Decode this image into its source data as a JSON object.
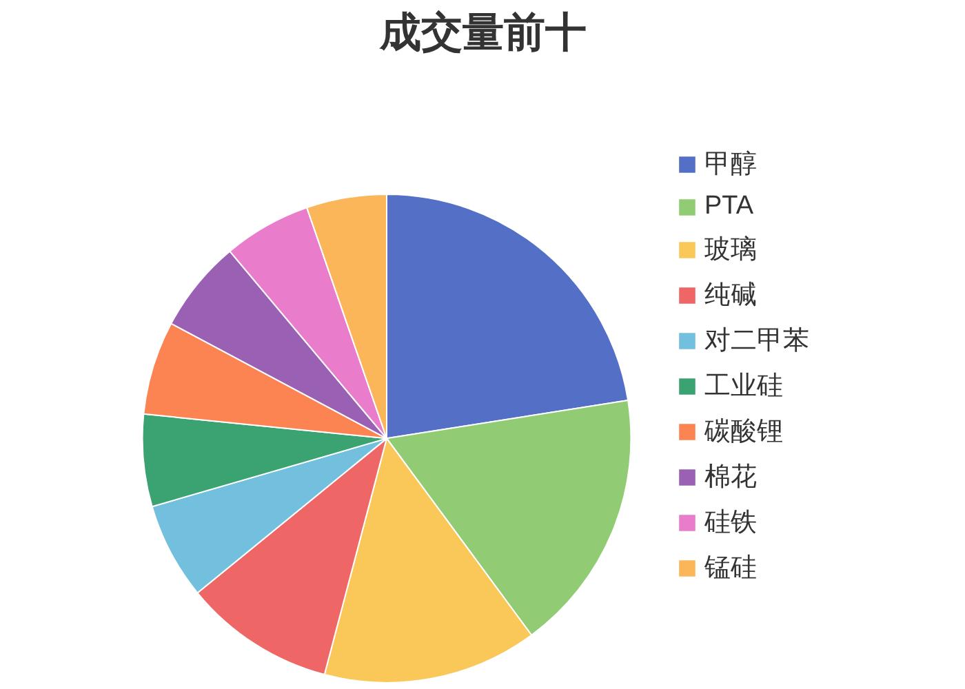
{
  "chart_data": {
    "type": "pie",
    "title": "成交量前十",
    "categories": [
      "甲醇",
      "PTA",
      "玻璃",
      "纯碱",
      "对二甲苯",
      "工业硅",
      "碳酸锂",
      "棉花",
      "硅铁",
      "锰硅"
    ],
    "values": [
      22.5,
      17.4,
      14.2,
      10,
      6.4,
      6.1,
      6.2,
      6.1,
      5.8,
      5.3
    ],
    "colors": [
      "#5470c6",
      "#91cc75",
      "#fac858",
      "#ee6666",
      "#73c0de",
      "#3ba272",
      "#fc8452",
      "#9a60b4",
      "#ea7ccc",
      "#fbb65a"
    ],
    "legend": "right"
  }
}
